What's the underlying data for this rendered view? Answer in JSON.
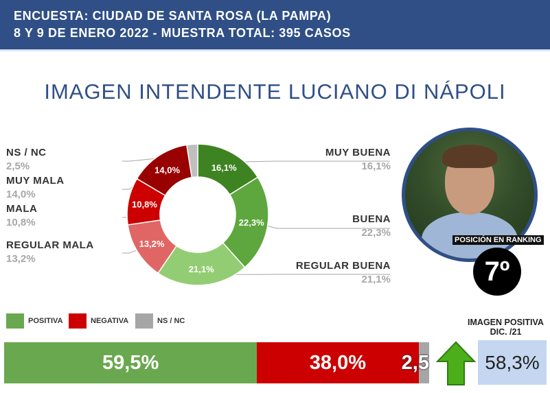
{
  "header": {
    "line1": "ENCUESTA: CIUDAD DE SANTA ROSA (LA PAMPA)",
    "line2": "8 Y 9 DE ENERO 2022  - MUESTRA TOTAL: 395 CASOS",
    "background": "#2f4f86"
  },
  "title": "IMAGEN INTENDENTE  LUCIANO DI NÁPOLI",
  "chart_data": [
    {
      "type": "pie",
      "variant": "donut",
      "categories": [
        "MUY BUENA",
        "BUENA",
        "REGULAR BUENA",
        "REGULAR MALA",
        "MALA",
        "MUY MALA",
        "NS / NC"
      ],
      "values": [
        16.1,
        22.3,
        21.1,
        13.2,
        10.8,
        14.0,
        2.5
      ],
      "value_labels": [
        "16,1%",
        "22,3%",
        "21,1%",
        "13,2%",
        "10,8%",
        "14,0%",
        "2,5%"
      ],
      "colors": [
        "#3e8321",
        "#5ea63e",
        "#93cd73",
        "#e06666",
        "#cc0000",
        "#990000",
        "#bfbfbf"
      ],
      "label_colors": [
        "#ffffff",
        "#ffffff",
        "#ffffff",
        "#ffffff",
        "#ffffff",
        "#ffffff",
        "#ffffff"
      ],
      "start_angle_deg": 0,
      "direction": "clockwise"
    },
    {
      "type": "bar",
      "orientation": "horizontal-stacked",
      "categories": [
        "POSITIVA",
        "NEGATIVA",
        "NS / NC"
      ],
      "values": [
        59.5,
        38.0,
        2.5
      ],
      "value_labels": [
        "59,5%",
        "38,0%",
        "2,5"
      ],
      "colors": [
        "#6aa84f",
        "#cc0000",
        "#a6a6a6"
      ]
    }
  ],
  "outer_labels": {
    "left": [
      {
        "name": "NS / NC",
        "pct": "2,5%"
      },
      {
        "name": "MUY MALA",
        "pct": "14,0%"
      },
      {
        "name": "MALA",
        "pct": "10,8%"
      },
      {
        "name": "REGULAR MALA",
        "pct": "13,2%"
      }
    ],
    "right": [
      {
        "name": "MUY BUENA",
        "pct": "16,1%"
      },
      {
        "name": "BUENA",
        "pct": "22,3%"
      },
      {
        "name": "REGULAR BUENA",
        "pct": "21,1%"
      }
    ]
  },
  "legend": [
    {
      "label": "POSITIVA",
      "color": "#6aa84f"
    },
    {
      "label": "NEGATIVA",
      "color": "#cc0000"
    },
    {
      "label": "NS / NC",
      "color": "#a6a6a6"
    }
  ],
  "ranking": {
    "label": "POSICIÓN EN RANKING",
    "value": "7º"
  },
  "previous": {
    "title_line1": "IMAGEN POSITIVA",
    "title_line2": "DIC. /21",
    "value": "58,3%",
    "arrow_icon": "up-arrow-icon",
    "arrow_color": "#4caf1a"
  }
}
